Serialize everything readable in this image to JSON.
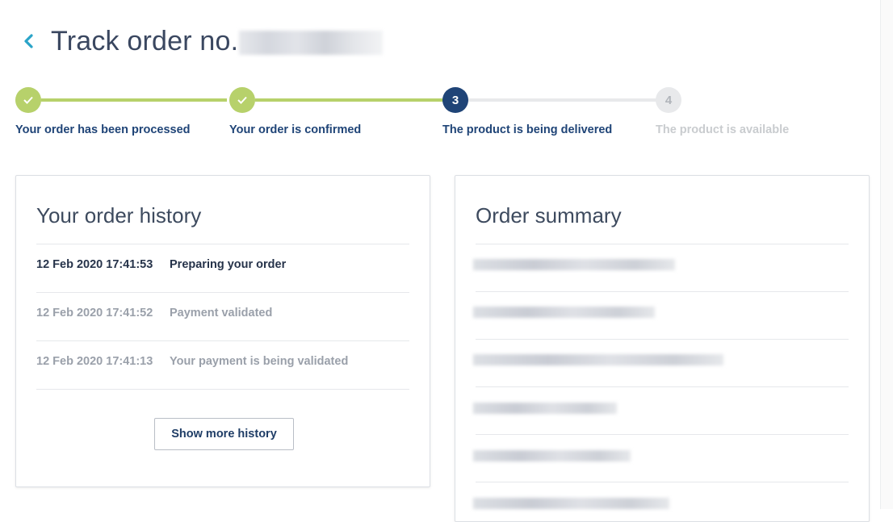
{
  "header": {
    "title": "Track order no."
  },
  "steps": [
    {
      "label": "Your order has been processed",
      "state": "done"
    },
    {
      "label": "Your order is confirmed",
      "state": "done"
    },
    {
      "number": "3",
      "label": "The product is being delivered",
      "state": "current"
    },
    {
      "number": "4",
      "label": "The product is available",
      "state": "pending"
    }
  ],
  "history": {
    "title": "Your order history",
    "rows": [
      {
        "date": "12 Feb 2020 17:41:53",
        "event": "Preparing your order"
      },
      {
        "date": "12 Feb 2020 17:41:52",
        "event": "Payment validated"
      },
      {
        "date": "12 Feb 2020 17:41:13",
        "event": "Your payment is being validated"
      }
    ],
    "show_more": "Show more history"
  },
  "summary": {
    "title": "Order summary"
  },
  "colors": {
    "done": "#b7d16b",
    "current": "#1f4477",
    "pending": "#e8e9eb",
    "accent": "#2aa4c8"
  }
}
